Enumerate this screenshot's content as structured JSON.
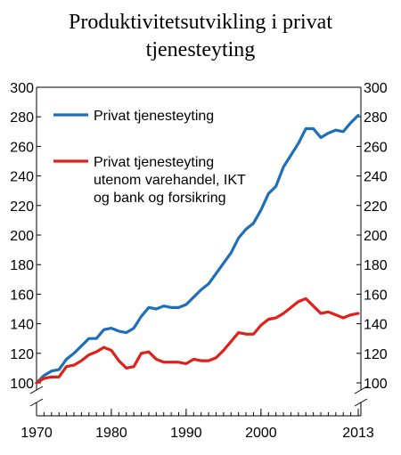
{
  "chart_data": {
    "type": "line",
    "title_lines": [
      "Produktivitetsutvikling i privat",
      "tjenesteyting"
    ],
    "xlabel": "",
    "ylabel": "",
    "x_tick_labels": [
      "1970",
      "1980",
      "1990",
      "2000",
      "2013"
    ],
    "x_ticks": [
      1970,
      1980,
      1990,
      2000,
      2013
    ],
    "xlim": [
      1970,
      2013
    ],
    "ylim": [
      100,
      300
    ],
    "y_ticks": [
      100,
      120,
      140,
      160,
      180,
      200,
      220,
      240,
      260,
      280,
      300
    ],
    "y_axis_break": true,
    "y_axis_secondary": true,
    "grid": false,
    "legend_position": "top-left-inside",
    "x": [
      1970,
      1971,
      1972,
      1973,
      1974,
      1975,
      1976,
      1977,
      1978,
      1979,
      1980,
      1981,
      1982,
      1983,
      1984,
      1985,
      1986,
      1987,
      1988,
      1989,
      1990,
      1991,
      1992,
      1993,
      1994,
      1995,
      1996,
      1997,
      1998,
      1999,
      2000,
      2001,
      2002,
      2003,
      2004,
      2005,
      2006,
      2007,
      2008,
      2009,
      2010,
      2011,
      2012,
      2013
    ],
    "series": [
      {
        "name": "Privat tjenesteyting",
        "color": "#1f6fb8",
        "values": [
          100,
          105,
          108,
          109,
          116,
          120,
          125,
          130,
          130,
          136,
          137,
          135,
          134,
          137,
          145,
          151,
          150,
          152,
          151,
          151,
          153,
          158,
          163,
          167,
          174,
          181,
          188,
          198,
          204,
          208,
          217,
          228,
          233,
          246,
          254,
          262,
          272,
          272,
          266,
          269,
          271,
          270,
          276,
          281
        ]
      },
      {
        "name_lines": [
          "Privat tjenesteyting",
          "utenom varehandel, IKT",
          "og bank og forsikring"
        ],
        "color": "#e0201b",
        "values": [
          100,
          103,
          104,
          104,
          111,
          112,
          115,
          119,
          121,
          124,
          122,
          115,
          110,
          111,
          120,
          121,
          116,
          114,
          114,
          114,
          113,
          116,
          115,
          115,
          117,
          122,
          128,
          134,
          133,
          133,
          139,
          143,
          144,
          147,
          151,
          155,
          157,
          152,
          147,
          148,
          146,
          144,
          146,
          147
        ]
      }
    ]
  }
}
